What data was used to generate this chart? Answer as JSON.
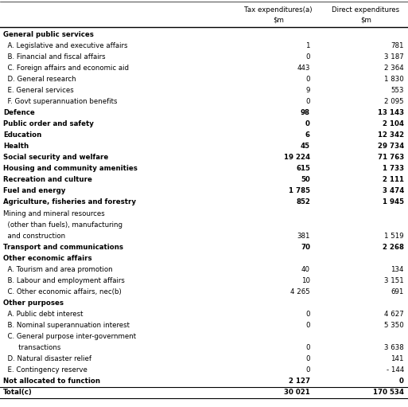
{
  "rows": [
    {
      "label": "General public services",
      "indent": 0,
      "bold": true,
      "tax": "",
      "direct": ""
    },
    {
      "label": "  A. Legislative and executive affairs",
      "indent": 0,
      "bold": false,
      "tax": "1",
      "direct": "781"
    },
    {
      "label": "  B. Financial and fiscal affairs",
      "indent": 0,
      "bold": false,
      "tax": "0",
      "direct": "3 187"
    },
    {
      "label": "  C. Foreign affairs and economic aid",
      "indent": 0,
      "bold": false,
      "tax": "443",
      "direct": "2 364"
    },
    {
      "label": "  D. General research",
      "indent": 0,
      "bold": false,
      "tax": "0",
      "direct": "1 830"
    },
    {
      "label": "  E. General services",
      "indent": 0,
      "bold": false,
      "tax": "9",
      "direct": "553"
    },
    {
      "label": "  F. Govt superannuation benefits",
      "indent": 0,
      "bold": false,
      "tax": "0",
      "direct": "2 095"
    },
    {
      "label": "Defence",
      "indent": 0,
      "bold": true,
      "tax": "98",
      "direct": "13 143"
    },
    {
      "label": "Public order and safety",
      "indent": 0,
      "bold": true,
      "tax": "0",
      "direct": "2 104"
    },
    {
      "label": "Education",
      "indent": 0,
      "bold": true,
      "tax": "6",
      "direct": "12 342"
    },
    {
      "label": "Health",
      "indent": 0,
      "bold": true,
      "tax": "45",
      "direct": "29 734"
    },
    {
      "label": "Social security and welfare",
      "indent": 0,
      "bold": true,
      "tax": "19 224",
      "direct": "71 763"
    },
    {
      "label": "Housing and community amenities",
      "indent": 0,
      "bold": true,
      "tax": "615",
      "direct": "1 733"
    },
    {
      "label": "Recreation and culture",
      "indent": 0,
      "bold": true,
      "tax": "50",
      "direct": "2 111"
    },
    {
      "label": "Fuel and energy",
      "indent": 0,
      "bold": true,
      "tax": "1 785",
      "direct": "3 474"
    },
    {
      "label": "Agriculture, fisheries and forestry",
      "indent": 0,
      "bold": true,
      "tax": "852",
      "direct": "1 945"
    },
    {
      "label": "Mining and mineral resources",
      "indent": 0,
      "bold": false,
      "tax": "",
      "direct": ""
    },
    {
      "label": "  (other than fuels), manufacturing",
      "indent": 0,
      "bold": false,
      "tax": "",
      "direct": ""
    },
    {
      "label": "  and construction",
      "indent": 0,
      "bold": false,
      "tax": "381",
      "direct": "1 519"
    },
    {
      "label": "Transport and communications",
      "indent": 0,
      "bold": true,
      "tax": "70",
      "direct": "2 268"
    },
    {
      "label": "Other economic affairs",
      "indent": 0,
      "bold": true,
      "tax": "",
      "direct": ""
    },
    {
      "label": "  A. Tourism and area promotion",
      "indent": 0,
      "bold": false,
      "tax": "40",
      "direct": "134"
    },
    {
      "label": "  B. Labour and employment affairs",
      "indent": 0,
      "bold": false,
      "tax": "10",
      "direct": "3 151"
    },
    {
      "label": "  C. Other economic affairs, nec(b)",
      "indent": 0,
      "bold": false,
      "tax": "4 265",
      "direct": "691"
    },
    {
      "label": "Other purposes",
      "indent": 0,
      "bold": true,
      "tax": "",
      "direct": ""
    },
    {
      "label": "  A. Public debt interest",
      "indent": 0,
      "bold": false,
      "tax": "0",
      "direct": "4 627"
    },
    {
      "label": "  B. Nominal superannuation interest",
      "indent": 0,
      "bold": false,
      "tax": "0",
      "direct": "5 350"
    },
    {
      "label": "  C. General purpose inter-government",
      "indent": 0,
      "bold": false,
      "tax": "",
      "direct": ""
    },
    {
      "label": "       transactions",
      "indent": 0,
      "bold": false,
      "tax": "0",
      "direct": "3 638"
    },
    {
      "label": "  D. Natural disaster relief",
      "indent": 0,
      "bold": false,
      "tax": "0",
      "direct": "141"
    },
    {
      "label": "  E. Contingency reserve",
      "indent": 0,
      "bold": false,
      "tax": "0",
      "direct": "- 144"
    },
    {
      "label": "Not allocated to function",
      "indent": 0,
      "bold": true,
      "tax": "2 127",
      "direct": "0"
    },
    {
      "label": "Total(c)",
      "indent": 0,
      "bold": true,
      "tax": "30 021",
      "direct": "170 534"
    }
  ],
  "bg_color": "#ffffff",
  "text_color": "#000000"
}
